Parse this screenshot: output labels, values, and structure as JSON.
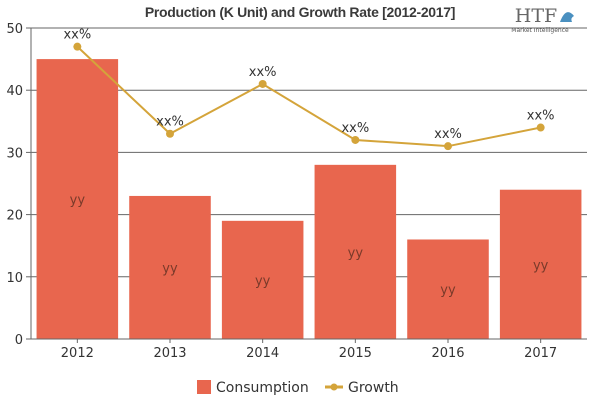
{
  "chart_data": {
    "type": "bar",
    "title": "Production (K Unit) and Growth Rate [2012-2017]",
    "xlabel": "",
    "ylabel": "",
    "ylim": [
      0,
      50
    ],
    "yticks": [
      0,
      10,
      20,
      30,
      40,
      50
    ],
    "categories": [
      "2012",
      "2013",
      "2014",
      "2015",
      "2016",
      "2017"
    ],
    "series": [
      {
        "name": "Consumption",
        "type": "bar",
        "color": "#E8664E",
        "values": [
          45,
          23,
          19,
          28,
          16,
          24
        ],
        "data_labels": [
          "yy",
          "yy",
          "yy",
          "yy",
          "yy",
          "yy"
        ]
      },
      {
        "name": "Growth",
        "type": "line",
        "color": "#D4A43A",
        "values": [
          47,
          33,
          41,
          32,
          31,
          34
        ],
        "data_labels": [
          "xx%",
          "xx%",
          "xx%",
          "xx%",
          "xx%",
          "xx%"
        ]
      }
    ],
    "grid": true,
    "legend": "bottom-center"
  },
  "logo": {
    "main": "HTF",
    "sub": "Market Intelligence"
  }
}
